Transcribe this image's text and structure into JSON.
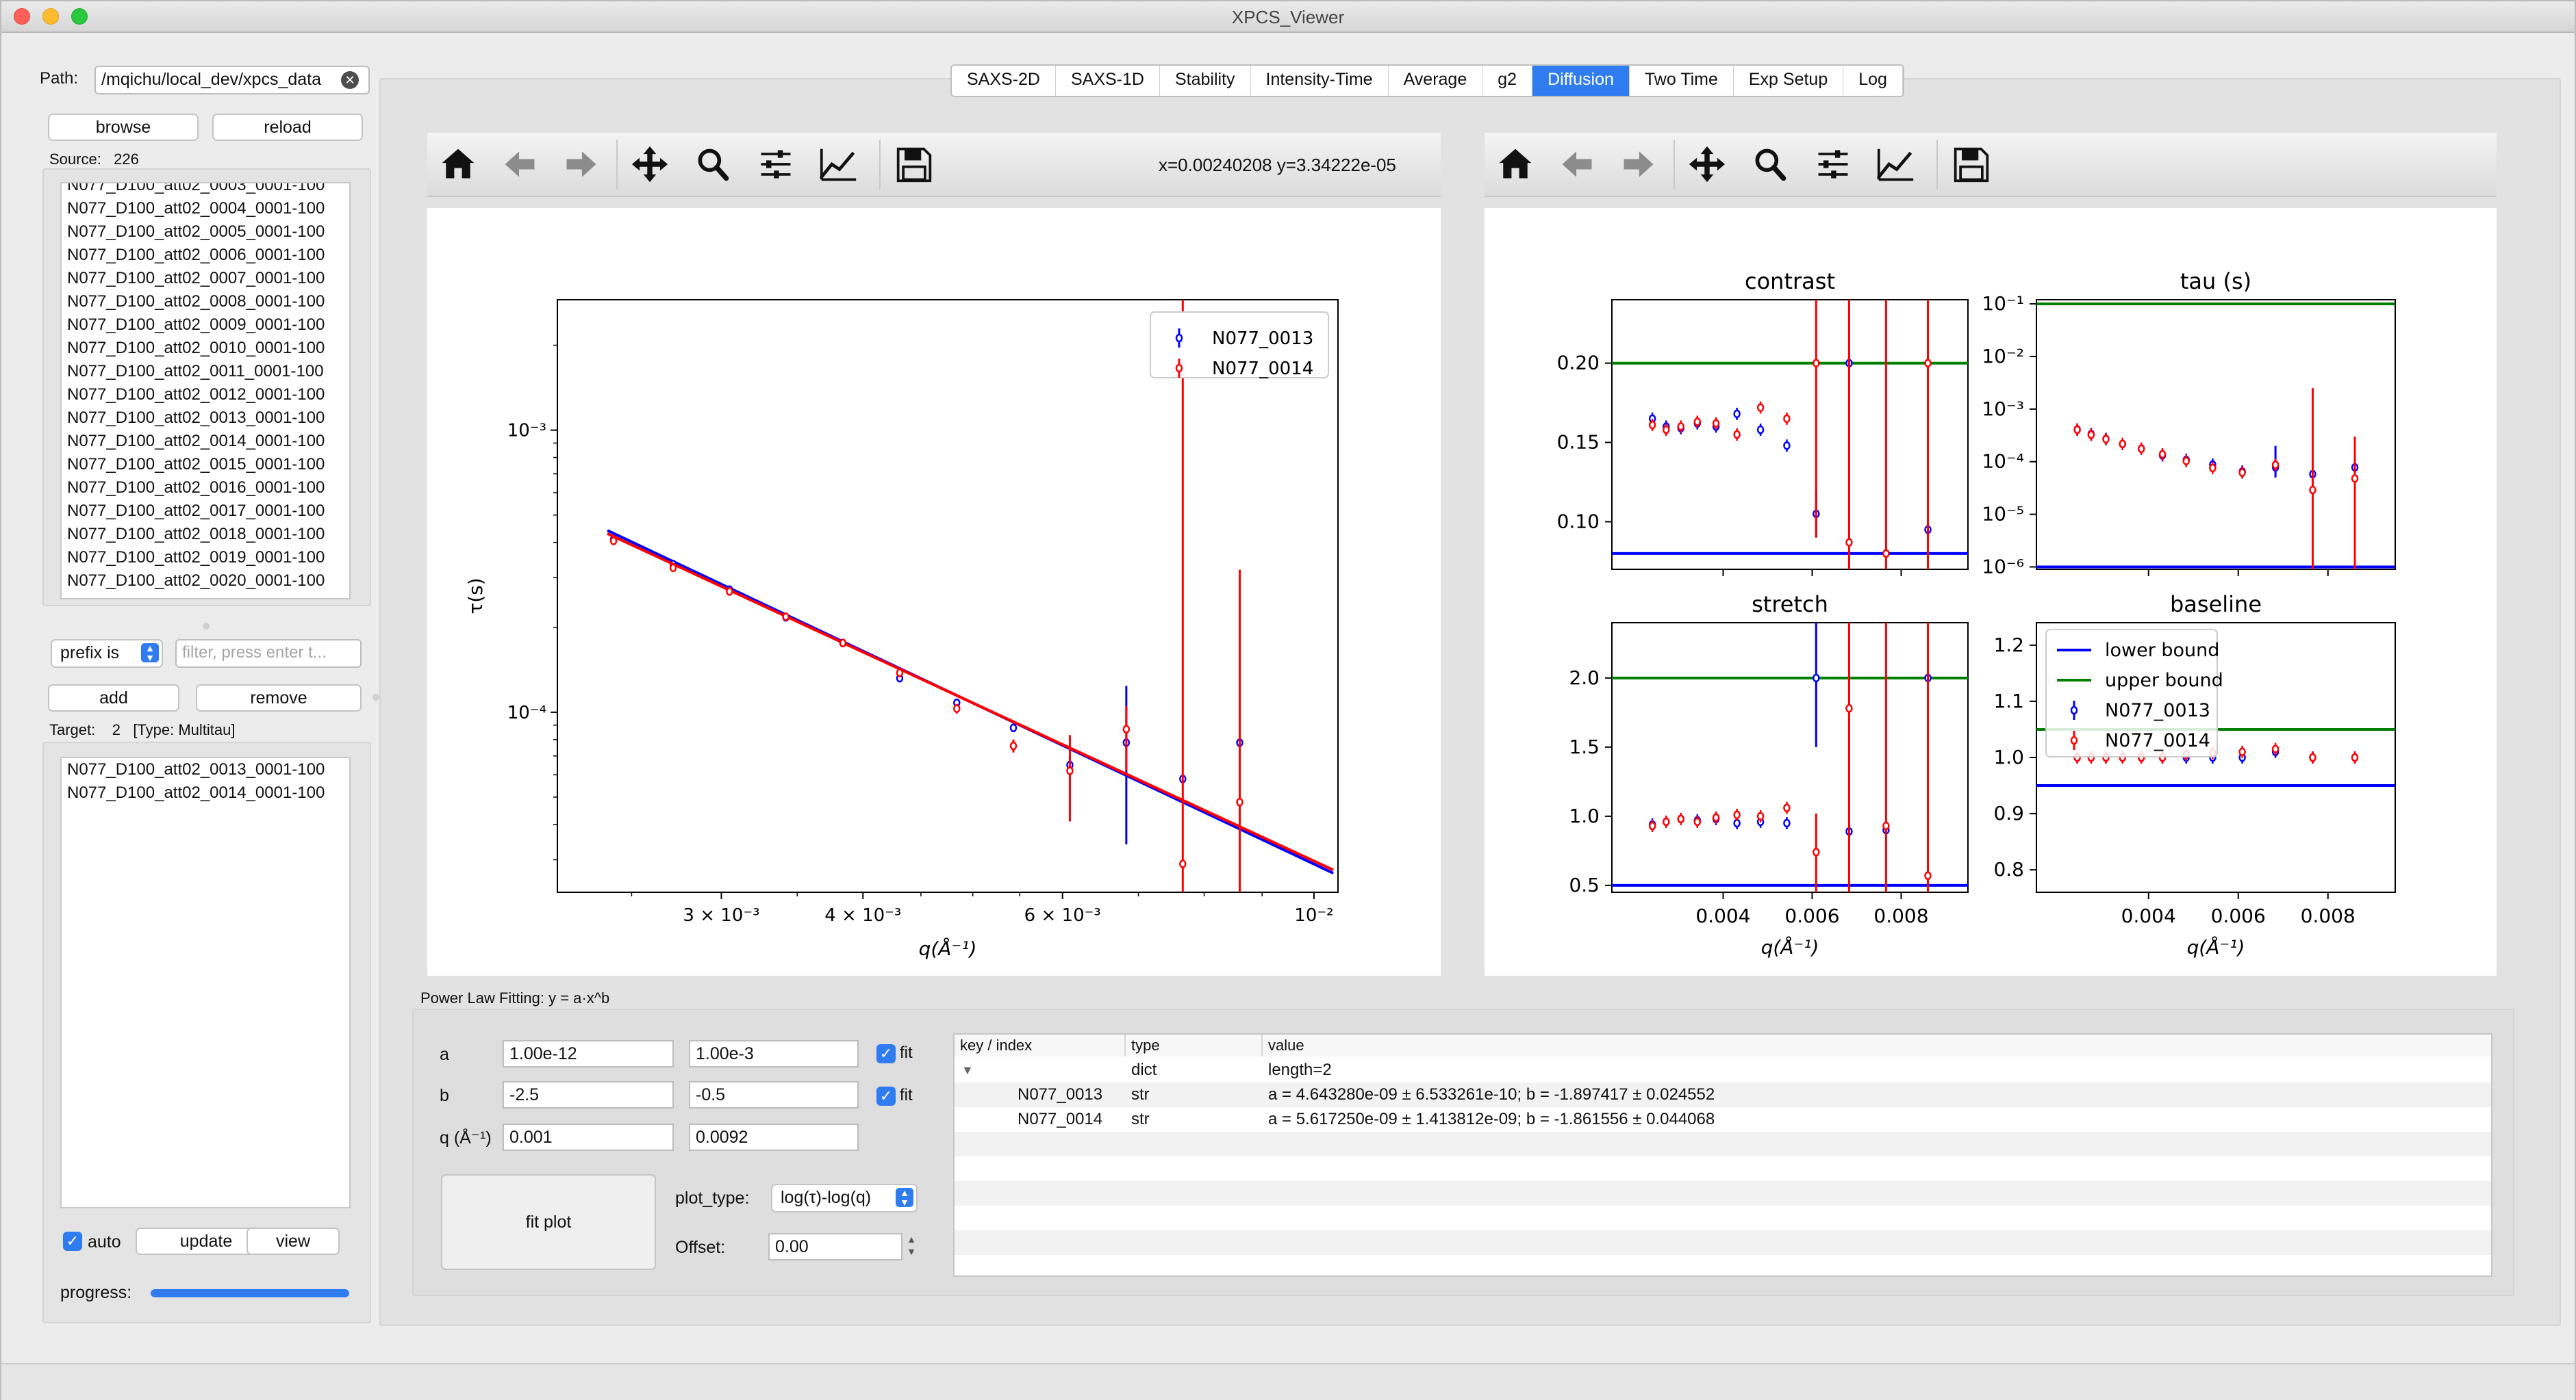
{
  "window": {
    "title": "XPCS_Viewer"
  },
  "left": {
    "path_label": "Path:",
    "path_value": "/mqichu/local_dev/xpcs_data",
    "browse_label": "browse",
    "reload_label": "reload",
    "source_label": "Source:",
    "source_count": "226",
    "source_files": [
      "N077_D100_att02_0003_0001-100",
      "N077_D100_att02_0004_0001-100",
      "N077_D100_att02_0005_0001-100",
      "N077_D100_att02_0006_0001-100",
      "N077_D100_att02_0007_0001-100",
      "N077_D100_att02_0008_0001-100",
      "N077_D100_att02_0009_0001-100",
      "N077_D100_att02_0010_0001-100",
      "N077_D100_att02_0011_0001-100",
      "N077_D100_att02_0012_0001-100",
      "N077_D100_att02_0013_0001-100",
      "N077_D100_att02_0014_0001-100",
      "N077_D100_att02_0015_0001-100",
      "N077_D100_att02_0016_0001-100",
      "N077_D100_att02_0017_0001-100",
      "N077_D100_att02_0018_0001-100",
      "N077_D100_att02_0019_0001-100",
      "N077_D100_att02_0020_0001-100"
    ],
    "filter_mode": "prefix is",
    "filter_placeholder": "filter, press enter t...",
    "add_label": "add",
    "remove_label": "remove",
    "target_label": "Target:",
    "target_count": "2",
    "target_type": "[Type: Multitau]",
    "target_files": [
      "N077_D100_att02_0013_0001-100",
      "N077_D100_att02_0014_0001-100"
    ],
    "auto_label": "auto",
    "auto_checked": true,
    "update_label": "update",
    "view_label": "view",
    "progress_label": "progress:",
    "progress": 1.0
  },
  "tabs": [
    {
      "label": "SAXS-2D",
      "active": false
    },
    {
      "label": "SAXS-1D",
      "active": false
    },
    {
      "label": "Stability",
      "active": false
    },
    {
      "label": "Intensity-Time",
      "active": false
    },
    {
      "label": "Average",
      "active": false
    },
    {
      "label": "g2",
      "active": false
    },
    {
      "label": "Diffusion",
      "active": true
    },
    {
      "label": "Two Time",
      "active": false
    },
    {
      "label": "Exp Setup",
      "active": false
    },
    {
      "label": "Log",
      "active": false
    }
  ],
  "toolbar": {
    "icons": [
      "home-icon",
      "back-arrow-icon",
      "forward-arrow-icon",
      "pan-icon",
      "zoom-icon",
      "configure-subplots-icon",
      "edit-axis-icon",
      "save-icon"
    ],
    "coords_readout": "x=0.00240208   y=3.34222e-05"
  },
  "fitting": {
    "section_label": "Power Law Fitting: y = a·x^b",
    "rows": [
      {
        "label": "a",
        "min": "1.00e-12",
        "max": "1.00e-3",
        "fit_label": "fit",
        "fit": true
      },
      {
        "label": "b",
        "min": "-2.5",
        "max": "-0.5",
        "fit_label": "fit",
        "fit": true
      },
      {
        "label": "q (Å⁻¹)",
        "min": "0.001",
        "max": "0.0092"
      }
    ],
    "fit_button_label": "fit plot",
    "plot_type_label": "plot_type:",
    "plot_type_value": "log(τ)-log(q)",
    "offset_label": "Offset:",
    "offset_value": "0.00"
  },
  "result_tree": {
    "headers": [
      "key / index",
      "type",
      "value"
    ],
    "rows": [
      {
        "key": "",
        "type": "dict",
        "value": "length=2"
      },
      {
        "key": "N077_0013",
        "type": "str",
        "value": "a = 4.643280e-09 ± 6.533261e-10; b = -1.897417 ± 0.024552"
      },
      {
        "key": "N077_0014",
        "type": "str",
        "value": "a = 5.617250e-09 ± 1.413812e-09; b = -1.861556 ± 0.044068"
      }
    ]
  },
  "colors": {
    "series_a": "#0000ff",
    "series_b": "#ff0000",
    "bound_upper": "#008000",
    "bound_lower": "#0000ff",
    "accent": "#2f7bf0"
  },
  "chart_data": [
    {
      "type": "scatter",
      "title": "",
      "xlabel": "q(Å⁻¹)",
      "ylabel": "τ(s)",
      "xscale": "log",
      "yscale": "log",
      "xlim": [
        0.00215,
        0.0105
      ],
      "ylim": [
        2.3e-05,
        0.0029
      ],
      "xtick_labels": [
        "3 × 10⁻³",
        "4 × 10⁻³",
        "6 × 10⁻³",
        "10⁻²"
      ],
      "xticks": [
        0.003,
        0.004,
        0.006,
        0.01
      ],
      "ytick_labels": [
        "10⁻³",
        "10⁻⁴"
      ],
      "yticks": [
        0.001,
        0.0001
      ],
      "legend": "top-right",
      "series": [
        {
          "name": "N077_0013",
          "color": "#0000ff",
          "x": [
            0.00241,
            0.00272,
            0.00305,
            0.00342,
            0.00384,
            0.00431,
            0.00484,
            0.00543,
            0.00609,
            0.00683,
            0.00766,
            0.0086
          ],
          "y": [
            0.00041,
            0.000335,
            0.000272,
            0.000217,
            0.000176,
            0.000132,
            0.000108,
            8.8e-05,
            6.5e-05,
            7.8e-05,
            5.8e-05,
            7.8e-05
          ],
          "err_lo": [
            0.0004,
            0.00033,
            0.000268,
            0.000214,
            0.000173,
            0.000129,
            0.000105,
            8.5e-05,
            6e-05,
            3.4e-05,
            5.8e-05,
            7.8e-05
          ],
          "err_hi": [
            0.00042,
            0.00034,
            0.000276,
            0.00022,
            0.000179,
            0.000135,
            0.000111,
            9.1e-05,
            7e-05,
            0.000124,
            5.8e-05,
            7.8e-05
          ],
          "fit_a": 4.64328e-09,
          "fit_b": -1.897417
        },
        {
          "name": "N077_0014",
          "color": "#ff0000",
          "x": [
            0.00241,
            0.00272,
            0.00305,
            0.00342,
            0.00384,
            0.00431,
            0.00484,
            0.00543,
            0.00609,
            0.00683,
            0.00766,
            0.0086
          ],
          "y": [
            0.000405,
            0.000325,
            0.000268,
            0.000218,
            0.000176,
            0.000138,
            0.000103,
            7.6e-05,
            6.2e-05,
            8.7e-05,
            2.9e-05,
            4.8e-05
          ],
          "err_lo": [
            0.000395,
            0.000318,
            0.000262,
            0.000213,
            0.000171,
            0.000133,
            9.9e-05,
            7.2e-05,
            4.1e-05,
            6.2e-05,
            2.3e-05,
            2.3e-05
          ],
          "err_hi": [
            0.000415,
            0.000332,
            0.000274,
            0.000223,
            0.000181,
            0.000143,
            0.000107,
            8e-05,
            8.3e-05,
            0.000105,
            0.0029,
            0.00032
          ],
          "fit_a": 5.61725e-09,
          "fit_b": -1.861556
        }
      ]
    },
    {
      "type": "scatter",
      "title": "contrast",
      "xlim": [
        0.0015,
        0.0095
      ],
      "ylim": [
        0.07,
        0.24
      ],
      "yticks": [
        0.1,
        0.15,
        0.2
      ],
      "ytick_labels": [
        "0.10",
        "0.15",
        "0.20"
      ],
      "xticks": [
        0.004,
        0.006,
        0.008
      ],
      "xtick_labels": [],
      "bounds": {
        "lower": 0.08,
        "upper": 0.2
      },
      "series": [
        {
          "name": "N077_0013",
          "x": [
            0.00241,
            0.00272,
            0.00305,
            0.00342,
            0.00384,
            0.00431,
            0.00484,
            0.00543,
            0.00609,
            0.00683,
            0.00766,
            0.0086
          ],
          "y": [
            0.165,
            0.16,
            0.159,
            0.162,
            0.16,
            0.168,
            0.158,
            0.148,
            0.105,
            0.2,
            0.08,
            0.095
          ]
        },
        {
          "name": "N077_0014",
          "x": [
            0.00241,
            0.00272,
            0.00305,
            0.00342,
            0.00384,
            0.00431,
            0.00484,
            0.00543,
            0.00609,
            0.00683,
            0.00766,
            0.0086
          ],
          "y": [
            0.161,
            0.158,
            0.16,
            0.163,
            0.162,
            0.155,
            0.172,
            0.165,
            0.2,
            0.087,
            0.08,
            0.2
          ]
        }
      ]
    },
    {
      "type": "scatter",
      "title": "tau (s)",
      "yscale": "log",
      "xlim": [
        0.0015,
        0.0095
      ],
      "ylim": [
        9e-07,
        0.12
      ],
      "yticks": [
        0.1,
        0.01,
        0.001,
        0.0001,
        1e-05,
        1e-06
      ],
      "ytick_labels": [
        "10⁻¹",
        "10⁻²",
        "10⁻³",
        "10⁻⁴",
        "10⁻⁵",
        "10⁻⁶"
      ],
      "xticks": [
        0.004,
        0.006,
        0.008
      ],
      "xtick_labels": [],
      "bounds": {
        "lower": 1e-06,
        "upper": 0.1
      },
      "series": [
        {
          "name": "N077_0013",
          "x": [
            0.00241,
            0.00272,
            0.00305,
            0.00342,
            0.00384,
            0.00431,
            0.00484,
            0.00543,
            0.00609,
            0.00683,
            0.00766,
            0.0086
          ],
          "y": [
            0.00041,
            0.000335,
            0.000272,
            0.000217,
            0.000176,
            0.000132,
            0.000108,
            8.8e-05,
            6.5e-05,
            7.8e-05,
            5.8e-05,
            7.8e-05
          ]
        },
        {
          "name": "N077_0014",
          "x": [
            0.00241,
            0.00272,
            0.00305,
            0.00342,
            0.00384,
            0.00431,
            0.00484,
            0.00543,
            0.00609,
            0.00683,
            0.00766,
            0.0086
          ],
          "y": [
            0.000405,
            0.000325,
            0.000268,
            0.000218,
            0.000176,
            0.000138,
            0.000103,
            7.6e-05,
            6.2e-05,
            8.7e-05,
            2.9e-05,
            4.8e-05
          ]
        }
      ]
    },
    {
      "type": "scatter",
      "title": "stretch",
      "xlabel": "q(Å⁻¹)",
      "xlim": [
        0.0015,
        0.0095
      ],
      "ylim": [
        0.45,
        2.4
      ],
      "yticks": [
        0.5,
        1.0,
        1.5,
        2.0
      ],
      "ytick_labels": [
        "0.5",
        "1.0",
        "1.5",
        "2.0"
      ],
      "xticks": [
        0.004,
        0.006,
        0.008
      ],
      "xtick_labels": [
        "0.004",
        "0.006",
        "0.008"
      ],
      "bounds": {
        "lower": 0.5,
        "upper": 2.0
      },
      "series": [
        {
          "name": "N077_0013",
          "x": [
            0.00241,
            0.00272,
            0.00305,
            0.00342,
            0.00384,
            0.00431,
            0.00484,
            0.00543,
            0.00609,
            0.00683,
            0.00766,
            0.0086
          ],
          "y": [
            0.94,
            0.96,
            0.98,
            0.97,
            0.98,
            0.95,
            0.96,
            0.95,
            2.0,
            0.89,
            0.9,
            2.0
          ]
        },
        {
          "name": "N077_0014",
          "x": [
            0.00241,
            0.00272,
            0.00305,
            0.00342,
            0.00384,
            0.00431,
            0.00484,
            0.00543,
            0.00609,
            0.00683,
            0.00766,
            0.0086
          ],
          "y": [
            0.93,
            0.96,
            0.98,
            0.96,
            0.99,
            1.01,
            1.0,
            1.06,
            0.74,
            1.78,
            0.93,
            0.57
          ]
        }
      ]
    },
    {
      "type": "scatter",
      "title": "baseline",
      "xlabel": "q(Å⁻¹)",
      "xlim": [
        0.0015,
        0.0095
      ],
      "ylim": [
        0.76,
        1.24
      ],
      "yticks": [
        0.8,
        0.9,
        1.0,
        1.1,
        1.2
      ],
      "ytick_labels": [
        "0.8",
        "0.9",
        "1.0",
        "1.1",
        "1.2"
      ],
      "xticks": [
        0.004,
        0.006,
        0.008
      ],
      "xtick_labels": [
        "0.004",
        "0.006",
        "0.008"
      ],
      "bounds": {
        "lower": 0.95,
        "upper": 1.05
      },
      "legend": "upper-left",
      "legend_entries": [
        "lower bound",
        "upper bound",
        "N077_0013",
        "N077_0014"
      ],
      "series": [
        {
          "name": "N077_0013",
          "x": [
            0.00241,
            0.00272,
            0.00305,
            0.00342,
            0.00384,
            0.00431,
            0.00484,
            0.00543,
            0.00609,
            0.00683,
            0.00766,
            0.0086
          ],
          "y": [
            1.0,
            1.0,
            1.0,
            1.0,
            1.0,
            1.0,
            1.0,
            1.0,
            1.0,
            1.01,
            1.0,
            1.0
          ]
        },
        {
          "name": "N077_0014",
          "x": [
            0.00241,
            0.00272,
            0.00305,
            0.00342,
            0.00384,
            0.00431,
            0.00484,
            0.00543,
            0.00609,
            0.00683,
            0.00766,
            0.0086
          ],
          "y": [
            1.0,
            1.0,
            1.0,
            1.0,
            1.0,
            1.0,
            1.005,
            1.008,
            1.01,
            1.015,
            1.0,
            1.0
          ]
        }
      ]
    }
  ]
}
